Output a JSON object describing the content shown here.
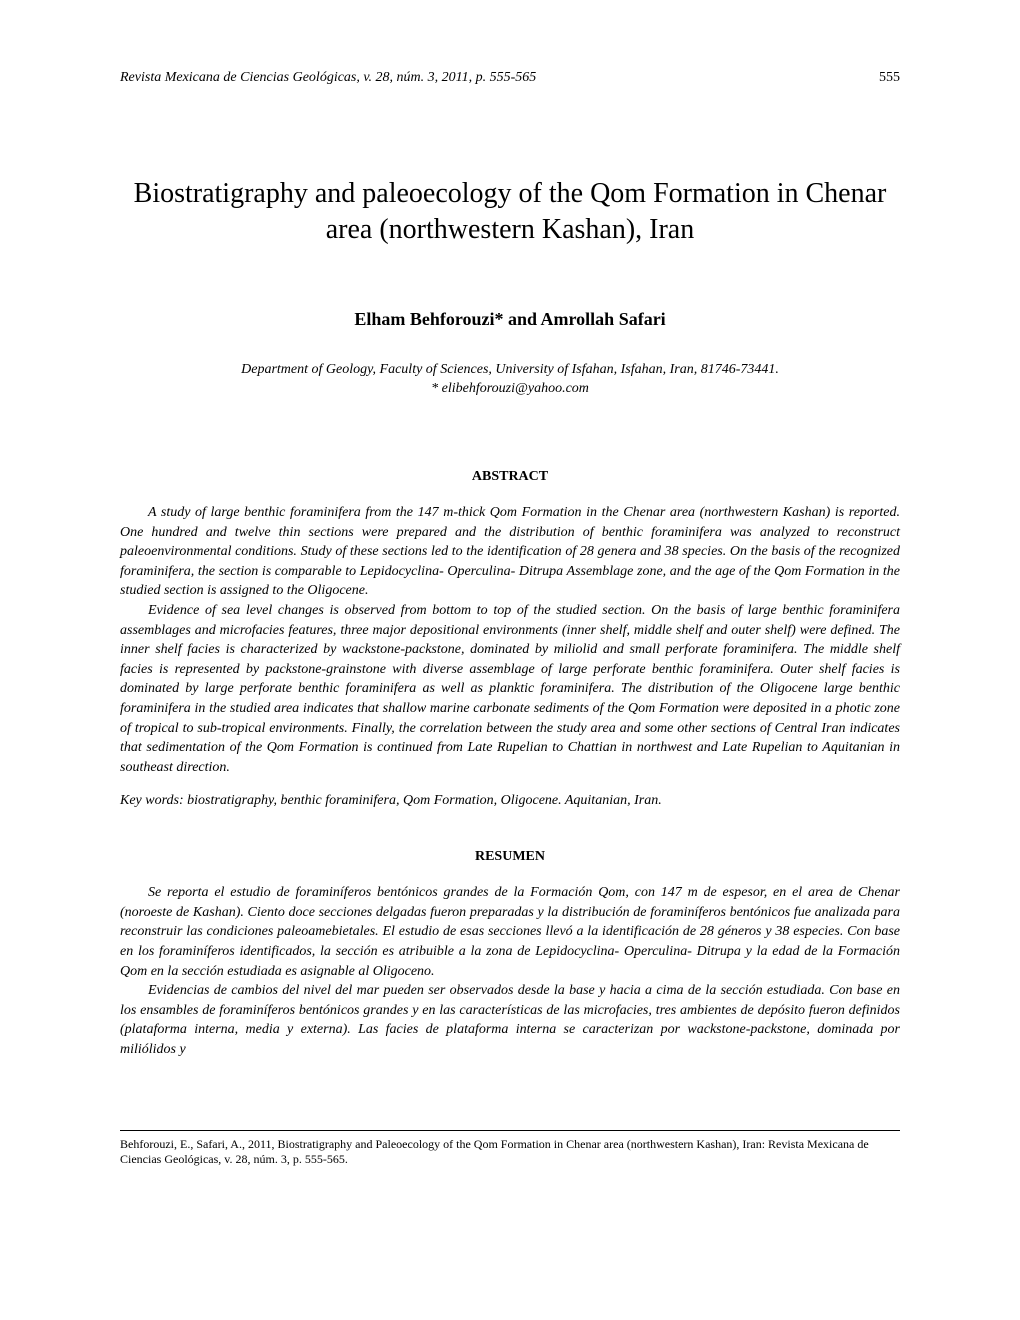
{
  "header": {
    "journal_info": "Revista Mexicana de Ciencias Geológicas, v. 28, núm. 3, 2011, p. 555-565",
    "page_number": "555"
  },
  "title": "Biostratigraphy and paleoecology of the Qom Formation in Chenar area (northwestern Kashan), Iran",
  "authors": "Elham Behforouzi* and Amrollah Safari",
  "affiliation_line1": "Department of Geology, Faculty of Sciences, University of Isfahan, Isfahan, Iran, 81746-73441.",
  "affiliation_line2": "* elibehforouzi@yahoo.com",
  "abstract_heading": "ABSTRACT",
  "abstract_p1": "A study of large benthic foraminifera from the 147 m-thick Qom Formation in the Chenar area (northwestern Kashan) is reported. One hundred and twelve thin sections were prepared and the distribution of benthic foraminifera was analyzed to reconstruct paleoenvironmental conditions. Study of these sections led to the identification of 28 genera and 38 species. On the basis of the recognized foraminifera, the section is comparable to Lepidocyclina- Operculina- Ditrupa Assemblage zone, and the age of the Qom Formation in the studied section is assigned to the Oligocene.",
  "abstract_p2": "Evidence of sea level changes is observed from bottom to top of the studied section. On the basis of large benthic foraminifera assemblages and microfacies features, three major depositional environments (inner shelf, middle shelf and outer shelf) were defined. The inner shelf facies is characterized by wackstone-packstone, dominated by miliolid and small perforate foraminifera. The middle shelf facies is represented by packstone-grainstone with diverse assemblage of large perforate benthic foraminifera. Outer shelf facies is dominated by large perforate benthic foraminifera as well as planktic foraminifera. The distribution of the Oligocene large benthic foraminifera in the studied area indicates that shallow marine carbonate sediments of the Qom Formation were deposited in a photic zone of tropical to sub-tropical environments. Finally, the correlation between the study area and some other sections of Central Iran indicates that sedimentation of the Qom Formation is continued from Late Rupelian to Chattian in northwest and Late Rupelian to Aquitanian in southeast direction.",
  "keywords": "Key words: biostratigraphy, benthic foraminifera, Qom Formation, Oligocene. Aquitanian, Iran.",
  "resumen_heading": "RESUMEN",
  "resumen_p1": "Se reporta el estudio de foraminíferos bentónicos grandes de la Formación Qom, con 147 m de espesor, en el area de Chenar (noroeste de Kashan). Ciento doce secciones delgadas fueron preparadas y la distribución de foraminíferos bentónicos fue analizada para reconstruir las condiciones paleoamebietales. El estudio de esas secciones llevó a la identificación de 28 géneros y 38 especies. Con base en los foraminíferos identificados, la sección es atribuible a la zona de Lepidocyclina- Operculina- Ditrupa y la edad de la Formación Qom en la sección estudiada es asignable al Oligoceno.",
  "resumen_p2": "Evidencias de cambios del nivel del mar pueden ser observados desde la base y hacia a cima de la sección estudiada. Con base en los ensambles de foraminíferos bentónicos grandes y en las características de las microfacies, tres ambientes de depósito fueron definidos (plataforma interna, media y externa). Las facies de plataforma interna se caracterizan por wackstone-packstone, dominada por miliólidos y",
  "citation": "Behforouzi, E., Safari, A., 2011, Biostratigraphy and Paleoecology of the Qom Formation in Chenar area (northwestern Kashan), Iran: Revista Mexicana de Ciencias Geológicas, v. 28, núm. 3, p. 555-565."
}
